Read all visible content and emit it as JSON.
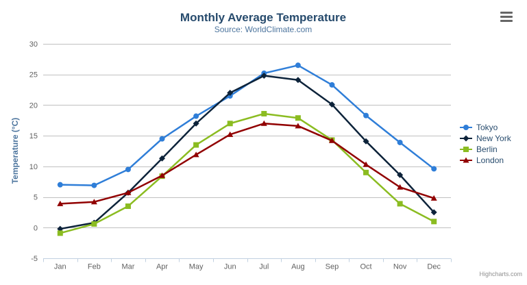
{
  "chart_data": {
    "type": "line",
    "title": "Monthly Average Temperature",
    "subtitle": "Source: WorldClimate.com",
    "xlabel": "",
    "ylabel": "Temperature (°C)",
    "categories": [
      "Jan",
      "Feb",
      "Mar",
      "Apr",
      "May",
      "Jun",
      "Jul",
      "Aug",
      "Sep",
      "Oct",
      "Nov",
      "Dec"
    ],
    "ylim": [
      -5,
      30
    ],
    "yticks": [
      -5,
      0,
      5,
      10,
      15,
      20,
      25,
      30
    ],
    "grid": true,
    "legend_position": "right",
    "series": [
      {
        "name": "Tokyo",
        "color": "#2f7ed8",
        "marker": "circle",
        "values": [
          7.0,
          6.9,
          9.5,
          14.5,
          18.2,
          21.5,
          25.2,
          26.5,
          23.3,
          18.3,
          13.9,
          9.6
        ]
      },
      {
        "name": "New York",
        "color": "#0d233a",
        "marker": "diamond",
        "values": [
          -0.2,
          0.8,
          5.7,
          11.3,
          17.0,
          22.0,
          24.8,
          24.1,
          20.1,
          14.1,
          8.6,
          2.5
        ]
      },
      {
        "name": "Berlin",
        "color": "#8bbc21",
        "marker": "square",
        "values": [
          -0.9,
          0.6,
          3.5,
          8.4,
          13.5,
          17.0,
          18.6,
          17.9,
          14.3,
          9.0,
          3.9,
          1.0
        ]
      },
      {
        "name": "London",
        "color": "#910000",
        "marker": "triangle",
        "values": [
          3.9,
          4.2,
          5.7,
          8.5,
          11.9,
          15.2,
          17.0,
          16.6,
          14.2,
          10.3,
          6.6,
          4.8
        ]
      }
    ]
  },
  "header": {
    "menu_icon": "hamburger-icon"
  },
  "credits": {
    "label": "Highcharts.com"
  },
  "theme": {
    "title_color": "#274b6d",
    "subtitle_color": "#4d759e",
    "axis_title_color": "#4d759e",
    "axis_label_color": "#606060",
    "grid_color": "#c0c0c0",
    "axis_line_color": "#c0d0e0",
    "tick_color": "#c0d0e0",
    "legend_text_color": "#274b6d",
    "credits_color": "#909090",
    "export_icon_color": "#666666",
    "background": "#ffffff"
  }
}
